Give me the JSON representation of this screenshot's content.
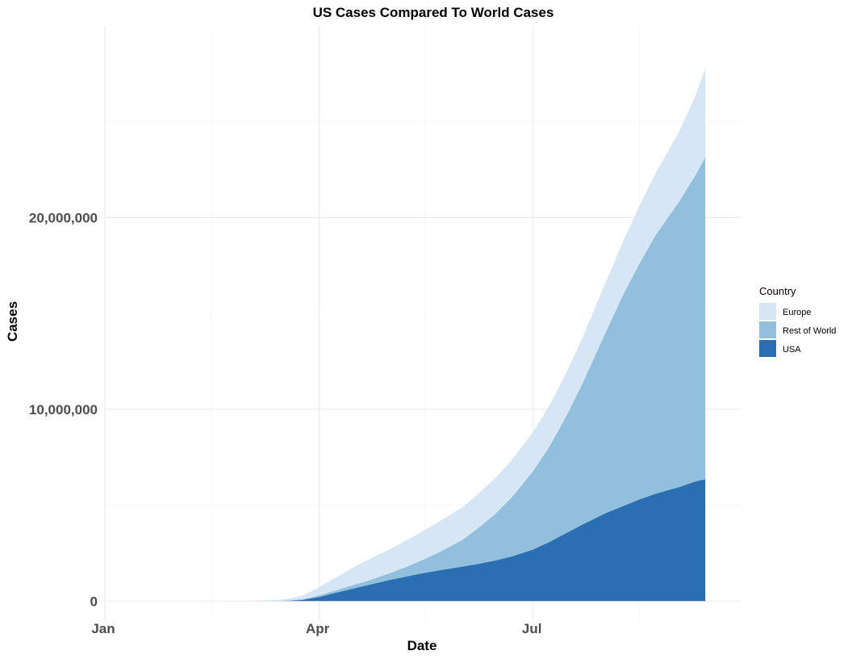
{
  "chart_data": {
    "type": "area",
    "stacked": true,
    "title": "US Cases Compared To World Cases",
    "xlabel": "Date",
    "ylabel": "Cases",
    "x_axis": "date",
    "xlim": [
      "2020-01-01",
      "2020-09-27"
    ],
    "ylim": [
      -1000000,
      30000000
    ],
    "x_ticks": [
      {
        "date": "2020-01-01",
        "label": "Jan"
      },
      {
        "date": "2020-04-01",
        "label": "Apr"
      },
      {
        "date": "2020-07-01",
        "label": "Jul"
      }
    ],
    "x_minor_ticks": [
      "2020-02-15",
      "2020-05-16",
      "2020-08-15"
    ],
    "y_ticks": [
      {
        "value": 0,
        "label": "0"
      },
      {
        "value": 10000000,
        "label": "10,000,000"
      },
      {
        "value": 20000000,
        "label": "20,000,000"
      }
    ],
    "y_minor_ticks": [
      5000000,
      15000000,
      25000000
    ],
    "grid": true,
    "legend": {
      "title": "Country",
      "placement": "right"
    },
    "x": [
      "2020-01-22",
      "2020-02-15",
      "2020-03-01",
      "2020-03-15",
      "2020-03-20",
      "2020-03-25",
      "2020-04-01",
      "2020-04-08",
      "2020-04-15",
      "2020-04-22",
      "2020-05-01",
      "2020-05-08",
      "2020-05-15",
      "2020-05-22",
      "2020-06-01",
      "2020-06-08",
      "2020-06-15",
      "2020-06-22",
      "2020-07-01",
      "2020-07-08",
      "2020-07-15",
      "2020-07-22",
      "2020-08-01",
      "2020-08-08",
      "2020-08-15",
      "2020-08-22",
      "2020-09-01",
      "2020-09-08",
      "2020-09-12"
    ],
    "series": [
      {
        "name": "USA",
        "color": "#2b6eb1",
        "values": [
          0,
          15,
          75,
          3500,
          19000,
          65000,
          215000,
          430000,
          640000,
          840000,
          1100000,
          1280000,
          1450000,
          1600000,
          1800000,
          1950000,
          2120000,
          2330000,
          2700000,
          3100000,
          3550000,
          4000000,
          4600000,
          4950000,
          5300000,
          5600000,
          5950000,
          6250000,
          6350000
        ]
      },
      {
        "name": "Rest of World",
        "color": "#92bfdb",
        "values": [
          0,
          10,
          3000,
          11000,
          17000,
          30000,
          80000,
          125000,
          175000,
          235000,
          350000,
          500000,
          700000,
          950000,
          1400000,
          1900000,
          2450000,
          3100000,
          4100000,
          5000000,
          6100000,
          7400000,
          9500000,
          11000000,
          12300000,
          13500000,
          14900000,
          16000000,
          16800000
        ]
      },
      {
        "name": "Europe",
        "color": "#d7e6f4",
        "values": [
          550,
          50,
          4000,
          50000,
          110000,
          200000,
          430000,
          670000,
          900000,
          1100000,
          1250000,
          1380000,
          1500000,
          1600000,
          1700000,
          1790000,
          1870000,
          1950000,
          2050000,
          2150000,
          2270000,
          2400000,
          2600000,
          2800000,
          3000000,
          3250000,
          3650000,
          4150000,
          4650000
        ]
      }
    ]
  }
}
